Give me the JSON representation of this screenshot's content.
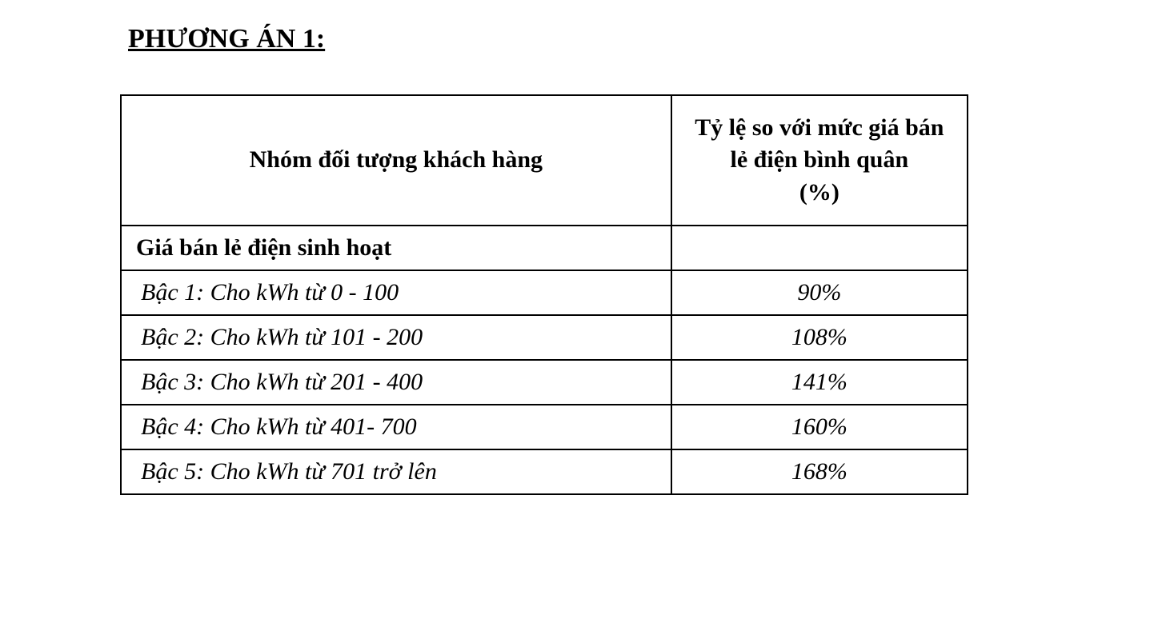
{
  "title": "PHƯƠNG ÁN 1:",
  "table": {
    "type": "table",
    "background_color": "#ffffff",
    "border_color": "#000000",
    "border_width": 2,
    "font_family": "Times New Roman",
    "header_fontsize": 30,
    "cell_fontsize": 30,
    "text_color": "#000000",
    "columns": [
      {
        "label": "Nhóm đối tượng khách hàng",
        "align": "center",
        "width_pct": 65
      },
      {
        "label": "Tỷ lệ so với mức giá bán lẻ điện bình quân\n(%)",
        "align": "center",
        "width_pct": 35
      }
    ],
    "section_header": "Giá bán lẻ điện sinh hoạt",
    "tiers": [
      {
        "label": "Bậc 1: Cho kWh từ 0 - 100",
        "value": "90%"
      },
      {
        "label": "Bậc 2: Cho kWh từ 101 - 200",
        "value": "108%"
      },
      {
        "label": "Bậc 3: Cho kWh từ 201 - 400",
        "value": "141%"
      },
      {
        "label": "Bậc 4: Cho kWh từ 401- 700",
        "value": "160%"
      },
      {
        "label": "Bậc 5: Cho kWh từ 701 trở lên",
        "value": "168%"
      }
    ]
  }
}
